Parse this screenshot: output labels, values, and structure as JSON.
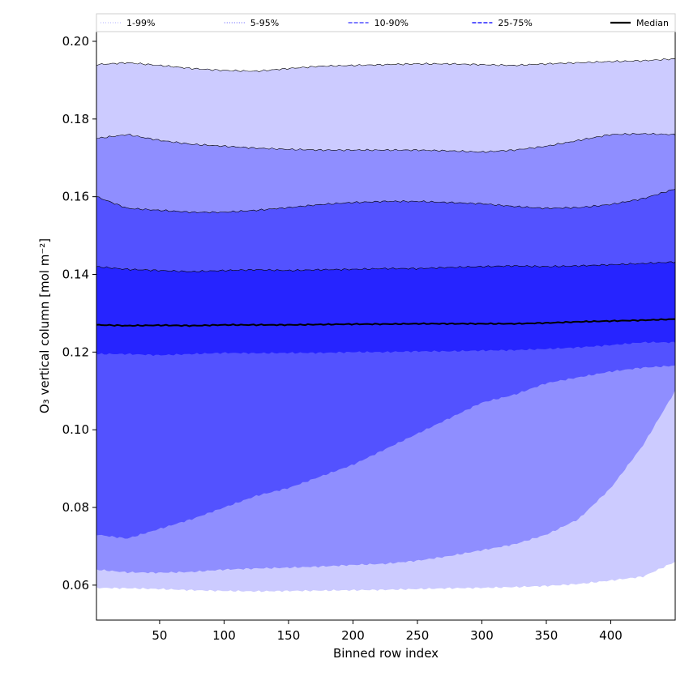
{
  "chart_data": {
    "type": "area",
    "xlabel": "Binned row index",
    "ylabel": "O₃ vertical column [mol m⁻²]",
    "xlim": [
      1,
      450
    ],
    "ylim": [
      0.051,
      0.2025
    ],
    "xticks": [
      50,
      100,
      150,
      200,
      250,
      300,
      350,
      400
    ],
    "yticks": [
      0.06,
      0.08,
      0.1,
      0.12,
      0.14,
      0.16,
      0.18,
      0.2
    ],
    "ytick_labels": [
      "0.06",
      "0.08",
      "0.10",
      "0.12",
      "0.14",
      "0.16",
      "0.18",
      "0.20"
    ],
    "legend_position": "top",
    "x": [
      1,
      25,
      50,
      75,
      100,
      125,
      150,
      175,
      200,
      225,
      250,
      275,
      300,
      325,
      350,
      375,
      400,
      425,
      450
    ],
    "bands": [
      {
        "name": "1-99%",
        "color": "#cccbff",
        "lower": [
          0.0593,
          0.0592,
          0.059,
          0.0587,
          0.0585,
          0.0584,
          0.0585,
          0.0586,
          0.0587,
          0.0588,
          0.059,
          0.0592,
          0.0593,
          0.0595,
          0.0598,
          0.0603,
          0.0612,
          0.0622,
          0.066
        ],
        "upper": [
          0.194,
          0.1945,
          0.1938,
          0.193,
          0.1925,
          0.1923,
          0.193,
          0.1936,
          0.1938,
          0.194,
          0.1942,
          0.1942,
          0.194,
          0.1938,
          0.1942,
          0.1945,
          0.1948,
          0.195,
          0.1955
        ]
      },
      {
        "name": "5-95%",
        "color": "#8f8eff",
        "lower": [
          0.064,
          0.0633,
          0.0632,
          0.0634,
          0.064,
          0.0643,
          0.0645,
          0.0648,
          0.0652,
          0.0655,
          0.0663,
          0.0675,
          0.069,
          0.0705,
          0.073,
          0.077,
          0.085,
          0.096,
          0.11
        ],
        "upper": [
          0.175,
          0.176,
          0.1745,
          0.1735,
          0.173,
          0.1725,
          0.1722,
          0.172,
          0.172,
          0.172,
          0.172,
          0.1718,
          0.1715,
          0.172,
          0.173,
          0.1745,
          0.176,
          0.1762,
          0.176
        ]
      },
      {
        "name": "10-90%",
        "color": "#5352ff",
        "lower": [
          0.073,
          0.072,
          0.0745,
          0.077,
          0.08,
          0.083,
          0.085,
          0.088,
          0.091,
          0.095,
          0.099,
          0.103,
          0.107,
          0.109,
          0.112,
          0.1135,
          0.115,
          0.116,
          0.1165
        ],
        "upper": [
          0.16,
          0.157,
          0.1565,
          0.156,
          0.156,
          0.1565,
          0.1572,
          0.158,
          0.1585,
          0.1588,
          0.1588,
          0.1585,
          0.1582,
          0.1575,
          0.157,
          0.1572,
          0.158,
          0.1595,
          0.162
        ]
      },
      {
        "name": "25-75%",
        "color": "#2624ff",
        "lower": [
          0.1195,
          0.1195,
          0.1192,
          0.1195,
          0.1198,
          0.1197,
          0.1198,
          0.1198,
          0.12,
          0.12,
          0.1202,
          0.1202,
          0.1204,
          0.1205,
          0.1208,
          0.1212,
          0.1218,
          0.1225,
          0.1225
        ],
        "upper": [
          0.142,
          0.1413,
          0.141,
          0.1407,
          0.141,
          0.1412,
          0.141,
          0.1412,
          0.1413,
          0.1415,
          0.1415,
          0.1418,
          0.142,
          0.1422,
          0.142,
          0.1422,
          0.1425,
          0.1428,
          0.1432
        ]
      }
    ],
    "median": {
      "name": "Median",
      "color": "#000000",
      "values": [
        0.127,
        0.1268,
        0.1269,
        0.1268,
        0.127,
        0.127,
        0.127,
        0.1271,
        0.1272,
        0.1272,
        0.1273,
        0.1273,
        0.1273,
        0.1273,
        0.1275,
        0.1278,
        0.128,
        0.1282,
        0.1285
      ]
    },
    "legend": [
      {
        "label": "1-99%",
        "color": "#cccbff",
        "style": "dotted"
      },
      {
        "label": "5-95%",
        "color": "#8f8eff",
        "style": "dotted"
      },
      {
        "label": "10-90%",
        "color": "#5352ff",
        "style": "dashed"
      },
      {
        "label": "25-75%",
        "color": "#2624ff",
        "style": "dashed"
      },
      {
        "label": "Median",
        "color": "#000000",
        "style": "solid"
      }
    ]
  }
}
